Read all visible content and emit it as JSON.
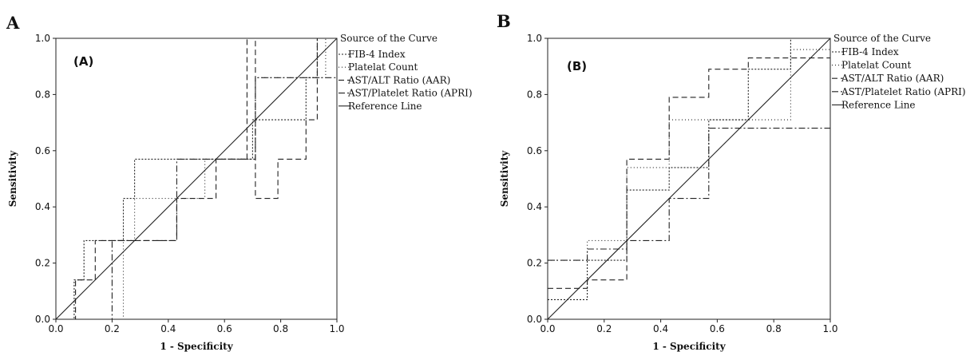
{
  "chart_data": [
    {
      "type": "line",
      "panel_letter": "A",
      "inner_label": "(A)",
      "xlabel": "1 - Specificity",
      "ylabel": "Sensitivity",
      "xlim": [
        0,
        1
      ],
      "ylim": [
        0,
        1
      ],
      "x_ticks": [
        "0.0",
        "0.2",
        "0.4",
        "0.6",
        "0.8",
        "1.0"
      ],
      "y_ticks": [
        "0.0",
        "0.2",
        "0.4",
        "0.6",
        "0.8",
        "1.0"
      ],
      "grid": false,
      "legend_title": "Source of the Curve",
      "legend_position": "right",
      "series": [
        {
          "name": "FIB-4 Index",
          "dash": "2,2",
          "x": [
            0,
            0.065,
            0.065,
            0.1,
            0.1,
            0.24,
            0.24,
            0.28,
            0.28,
            0.46,
            0.46,
            0.53,
            0.53,
            0.7,
            0.7,
            0.72,
            0.72,
            0.89,
            0.89,
            0.93,
            0.93,
            1.0
          ],
          "y": [
            0,
            0,
            0.14,
            0.14,
            0.28,
            0.28,
            0.43,
            0.43,
            0.57,
            0.57,
            0.57,
            0.57,
            0.57,
            0.57,
            0.71,
            0.71,
            0.71,
            0.71,
            0.86,
            0.86,
            1.0,
            1.0
          ]
        },
        {
          "name": "Platelat Count",
          "dash": "1,3",
          "x": [
            0,
            0.24,
            0.24,
            0.28,
            0.28,
            0.53,
            0.53,
            0.71,
            0.71,
            0.89,
            0.89,
            0.96,
            0.96,
            1.0
          ],
          "y": [
            0,
            0,
            0.28,
            0.28,
            0.43,
            0.43,
            0.57,
            0.57,
            0.86,
            0.86,
            0.86,
            0.86,
            1.0,
            1.0
          ]
        },
        {
          "name": "AST/ALT Ratio (AAR)",
          "dash": "7,4",
          "x": [
            0,
            0.07,
            0.07,
            0.14,
            0.14,
            0.43,
            0.43,
            0.57,
            0.57,
            0.68,
            0.68,
            0.71,
            0.71,
            0.79,
            0.79,
            0.89,
            0.89,
            0.93,
            0.93,
            1.0
          ],
          "y": [
            0,
            0,
            0.14,
            0.14,
            0.28,
            0.28,
            0.43,
            0.43,
            0.57,
            0.57,
            1.0,
            1.0,
            0.43,
            0.43,
            0.57,
            0.57,
            0.71,
            0.71,
            1.0,
            1.0
          ]
        },
        {
          "name": "AST/Platelet Ratio (APRI)",
          "dash": "8,3,2,3",
          "x": [
            0,
            0.2,
            0.2,
            0.21,
            0.21,
            0.28,
            0.28,
            0.43,
            0.43,
            0.68,
            0.68,
            0.71,
            0.71,
            1.0
          ],
          "y": [
            0,
            0,
            0.28,
            0.28,
            0.28,
            0.28,
            0.28,
            0.28,
            0.57,
            0.57,
            0.57,
            0.57,
            0.86,
            0.86
          ]
        },
        {
          "name": "Reference Line",
          "dash": "",
          "x": [
            0,
            1
          ],
          "y": [
            0,
            1
          ]
        }
      ]
    },
    {
      "type": "line",
      "panel_letter": "B",
      "inner_label": "(B)",
      "xlabel": "1 - Specificity",
      "ylabel": "Sensitivity",
      "xlim": [
        0,
        1
      ],
      "ylim": [
        0,
        1
      ],
      "x_ticks": [
        "0.0",
        "0.2",
        "0.4",
        "0.6",
        "0.8",
        "1.0"
      ],
      "y_ticks": [
        "0.0",
        "0.2",
        "0.4",
        "0.6",
        "0.8",
        "1.0"
      ],
      "grid": false,
      "legend_title": "Source of the Curve",
      "legend_position": "right",
      "series": [
        {
          "name": "FIB-4 Index",
          "dash": "2,2",
          "x": [
            0,
            0.14,
            0.14,
            0.28,
            0.28,
            0.43,
            0.43,
            0.57,
            0.57,
            0.71,
            0.71,
            0.86,
            0.86,
            1.0
          ],
          "y": [
            0.07,
            0.07,
            0.21,
            0.21,
            0.46,
            0.46,
            0.54,
            0.54,
            0.71,
            0.71,
            0.89,
            0.89,
            1.0,
            1.0
          ]
        },
        {
          "name": "Platelat Count",
          "dash": "1,3",
          "x": [
            0,
            0.14,
            0.14,
            0.28,
            0.28,
            0.43,
            0.43,
            0.57,
            0.57,
            0.71,
            0.71,
            0.86,
            0.86,
            0.93,
            0.93,
            1.0
          ],
          "y": [
            0.21,
            0.21,
            0.28,
            0.28,
            0.54,
            0.54,
            0.71,
            0.71,
            0.71,
            0.71,
            0.71,
            0.71,
            0.96,
            0.96,
            0.96,
            0.96
          ]
        },
        {
          "name": "AST/ALT Ratio (AAR)",
          "dash": "7,4",
          "x": [
            0,
            0.14,
            0.14,
            0.28,
            0.28,
            0.43,
            0.43,
            0.57,
            0.57,
            0.71,
            0.71,
            0.86,
            0.86,
            1.0
          ],
          "y": [
            0.11,
            0.11,
            0.14,
            0.14,
            0.57,
            0.57,
            0.79,
            0.79,
            0.89,
            0.89,
            0.93,
            0.93,
            0.93,
            0.93
          ]
        },
        {
          "name": "AST/Platelet Ratio (APRI)",
          "dash": "8,3,2,3",
          "x": [
            0,
            0.14,
            0.14,
            0.28,
            0.28,
            0.43,
            0.43,
            0.57,
            0.57,
            1.0
          ],
          "y": [
            0.21,
            0.21,
            0.25,
            0.25,
            0.28,
            0.28,
            0.43,
            0.43,
            0.68,
            0.68
          ]
        },
        {
          "name": "Reference Line",
          "dash": "",
          "x": [
            0,
            1
          ],
          "y": [
            0,
            1
          ]
        }
      ]
    }
  ]
}
